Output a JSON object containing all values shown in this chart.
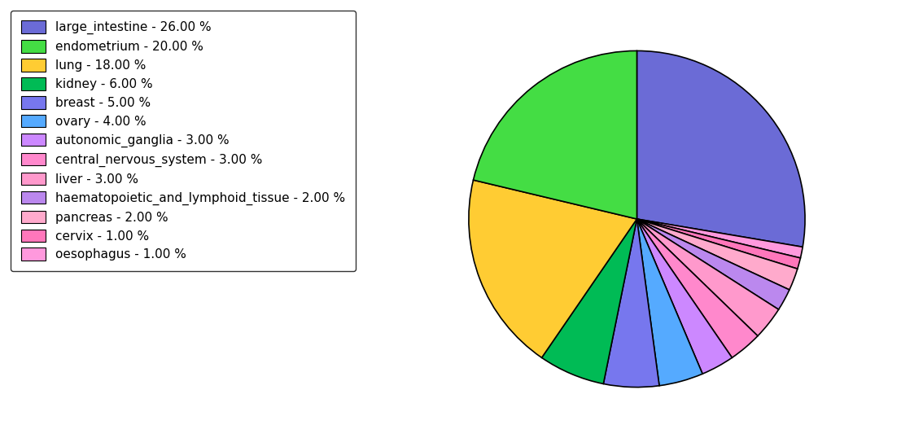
{
  "labels": [
    "large_intestine",
    "oesophagus",
    "cervix",
    "pancreas",
    "haematopoietic_and_lymphoid_tissue",
    "liver",
    "central_nervous_system",
    "autonomic_ganglia",
    "ovary",
    "breast",
    "kidney",
    "lung",
    "endometrium"
  ],
  "sizes": [
    26,
    1,
    1,
    2,
    2,
    3,
    3,
    3,
    4,
    5,
    6,
    18,
    20
  ],
  "colors": [
    "#6B6BD6",
    "#FF99DD",
    "#FF77BB",
    "#FFAACC",
    "#BB88EE",
    "#FF99CC",
    "#FF88CC",
    "#CC88FF",
    "#55AAFF",
    "#7777EE",
    "#00BB55",
    "#FFCC33",
    "#44DD44"
  ],
  "legend_labels": [
    "large_intestine - 26.00 %",
    "endometrium - 20.00 %",
    "lung - 18.00 %",
    "kidney - 6.00 %",
    "breast - 5.00 %",
    "ovary - 4.00 %",
    "autonomic_ganglia - 3.00 %",
    "central_nervous_system - 3.00 %",
    "liver - 3.00 %",
    "haematopoietic_and_lymphoid_tissue - 2.00 %",
    "pancreas - 2.00 %",
    "cervix - 1.00 %",
    "oesophagus - 1.00 %"
  ],
  "legend_colors": [
    "#6B6BD6",
    "#44DD44",
    "#FFCC33",
    "#00BB55",
    "#7777EE",
    "#55AAFF",
    "#CC88FF",
    "#FF88CC",
    "#FF99CC",
    "#BB88EE",
    "#FFAACC",
    "#FF77BB",
    "#FF99DD"
  ],
  "startangle": 90,
  "figsize": [
    11.34,
    5.38
  ],
  "dpi": 100
}
